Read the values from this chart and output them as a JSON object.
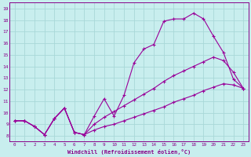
{
  "xlabel": "Windchill (Refroidissement éolien,°C)",
  "background_color": "#c8eeee",
  "grid_color": "#a8d8d8",
  "line_color": "#990099",
  "spine_color": "#880088",
  "xlim": [
    -0.5,
    23.5
  ],
  "ylim": [
    7.5,
    19.5
  ],
  "xticks": [
    0,
    1,
    2,
    3,
    4,
    5,
    6,
    7,
    8,
    9,
    10,
    11,
    12,
    13,
    14,
    15,
    16,
    17,
    18,
    19,
    20,
    21,
    22,
    23
  ],
  "yticks": [
    8,
    9,
    10,
    11,
    12,
    13,
    14,
    15,
    16,
    17,
    18,
    19
  ],
  "series": [
    {
      "x": [
        0,
        1,
        2,
        3,
        4,
        5,
        6,
        7,
        8,
        9,
        10,
        11,
        12,
        13,
        14,
        15,
        16,
        17,
        18,
        19,
        20,
        21,
        22,
        23
      ],
      "y": [
        9.3,
        9.3,
        8.8,
        8.1,
        9.5,
        10.4,
        8.3,
        8.1,
        9.7,
        11.2,
        9.7,
        11.5,
        14.3,
        15.5,
        15.9,
        17.9,
        18.1,
        18.1,
        18.6,
        18.1,
        16.6,
        15.2,
        12.9,
        12.1
      ]
    },
    {
      "x": [
        0,
        1,
        2,
        3,
        4,
        5,
        6,
        7,
        8,
        9,
        10,
        11,
        12,
        13,
        14,
        15,
        16,
        17,
        18,
        19,
        20,
        21,
        22,
        23
      ],
      "y": [
        9.3,
        9.3,
        8.8,
        8.1,
        9.5,
        10.4,
        8.3,
        8.1,
        9.0,
        9.6,
        10.1,
        10.6,
        11.1,
        11.6,
        12.1,
        12.7,
        13.2,
        13.6,
        14.0,
        14.4,
        14.8,
        14.5,
        13.5,
        12.1
      ]
    },
    {
      "x": [
        0,
        1,
        2,
        3,
        4,
        5,
        6,
        7,
        8,
        9,
        10,
        11,
        12,
        13,
        14,
        15,
        16,
        17,
        18,
        19,
        20,
        21,
        22,
        23
      ],
      "y": [
        9.3,
        9.3,
        8.8,
        8.1,
        9.5,
        10.4,
        8.3,
        8.1,
        8.5,
        8.8,
        9.0,
        9.3,
        9.6,
        9.9,
        10.2,
        10.5,
        10.9,
        11.2,
        11.5,
        11.9,
        12.2,
        12.5,
        12.4,
        12.1
      ]
    }
  ]
}
